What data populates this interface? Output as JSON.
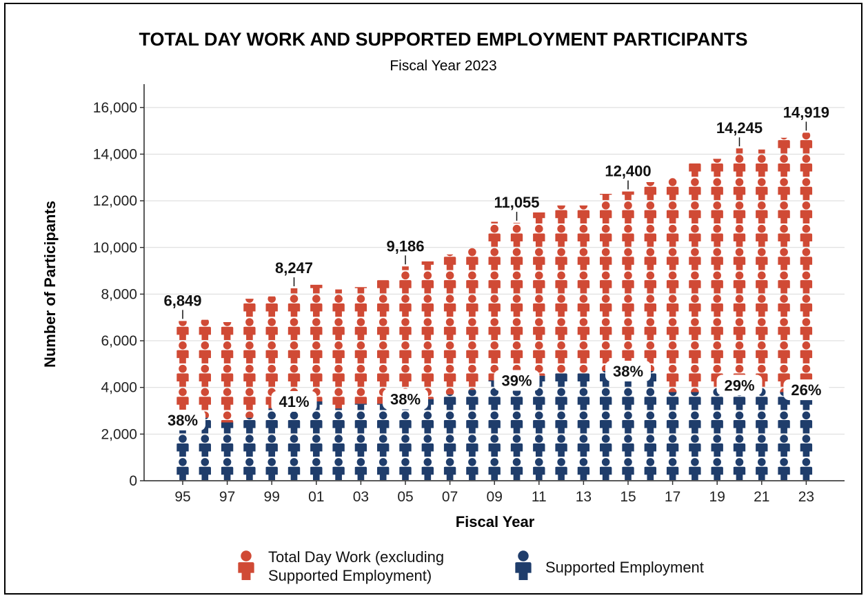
{
  "chart_data": {
    "type": "bar",
    "title": "TOTAL DAY WORK AND SUPPORTED EMPLOYMENT PARTICIPANTS",
    "subtitle": "Fiscal Year 2023",
    "xlabel": "Fiscal Year",
    "ylabel": "Number of Participants",
    "ylim": [
      0,
      17000
    ],
    "yticks": [
      "0",
      "2,000",
      "4,000",
      "6,000",
      "8,000",
      "10,000",
      "12,000",
      "14,000",
      "16,000"
    ],
    "ytick_values": [
      0,
      2000,
      4000,
      6000,
      8000,
      10000,
      12000,
      14000,
      16000
    ],
    "categories": [
      "95",
      "96",
      "97",
      "98",
      "99",
      "00",
      "01",
      "02",
      "03",
      "04",
      "05",
      "06",
      "07",
      "08",
      "09",
      "10",
      "11",
      "12",
      "13",
      "14",
      "15",
      "16",
      "17",
      "18",
      "19",
      "20",
      "21",
      "22",
      "23"
    ],
    "xtick_labels": [
      "95",
      "97",
      "99",
      "01",
      "03",
      "05",
      "07",
      "09",
      "11",
      "13",
      "15",
      "17",
      "19",
      "21",
      "23"
    ],
    "grid": "horizontal",
    "legend_position": "bottom",
    "series": [
      {
        "name": "Supported Employment",
        "color": "#1f3d6b",
        "icon": "person-icon",
        "values": [
          2600,
          2700,
          2500,
          2700,
          3100,
          3400,
          3400,
          3100,
          3300,
          3300,
          3500,
          3500,
          3700,
          3900,
          4300,
          4300,
          4500,
          4600,
          4600,
          4700,
          4700,
          4700,
          3800,
          3800,
          4000,
          4100,
          4000,
          3800,
          3900
        ]
      },
      {
        "name": "Total Day Work (excluding Supported Employment)",
        "color": "#d04a35",
        "icon": "person-icon",
        "values": [
          4249,
          4200,
          4300,
          5100,
          4800,
          4847,
          5000,
          5100,
          5000,
          5300,
          5686,
          5900,
          6000,
          6100,
          6800,
          6755,
          7000,
          7200,
          7200,
          7600,
          7700,
          8100,
          9200,
          9800,
          9800,
          10145,
          10200,
          10900,
          11019
        ]
      }
    ],
    "total_labels": [
      {
        "category": "95",
        "value": 6849,
        "text": "6,849"
      },
      {
        "category": "00",
        "value": 8247,
        "text": "8,247"
      },
      {
        "category": "05",
        "value": 9186,
        "text": "9,186"
      },
      {
        "category": "10",
        "value": 11055,
        "text": "11,055"
      },
      {
        "category": "15",
        "value": 12400,
        "text": "12,400"
      },
      {
        "category": "20",
        "value": 14245,
        "text": "14,245"
      },
      {
        "category": "23",
        "value": 14919,
        "text": "14,919"
      }
    ],
    "percent_labels": [
      {
        "category": "95",
        "text": "38%"
      },
      {
        "category": "00",
        "text": "41%"
      },
      {
        "category": "05",
        "text": "38%"
      },
      {
        "category": "10",
        "text": "39%"
      },
      {
        "category": "15",
        "text": "38%"
      },
      {
        "category": "20",
        "text": "29%"
      },
      {
        "category": "23",
        "text": "26%"
      }
    ],
    "legend": [
      {
        "line1": "Total Day Work (excluding",
        "line2": "Supported Employment)",
        "color": "#d04a35"
      },
      {
        "line1": "Supported Employment",
        "line2": "",
        "color": "#1f3d6b"
      }
    ]
  }
}
